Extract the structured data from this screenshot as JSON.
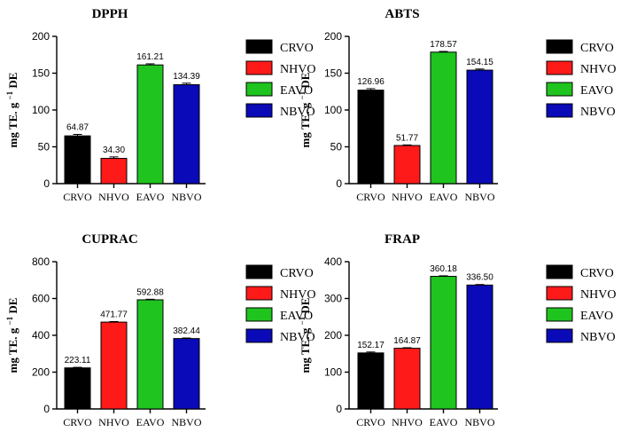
{
  "chart_data": [
    {
      "type": "bar",
      "title": "DPPH",
      "ylabel": "mg TE. g",
      "ylabel_sup": "−1",
      "ylabel_suffix": "DE",
      "categories": [
        "CRVO",
        "NHVO",
        "EAVO",
        "NBVO"
      ],
      "values": [
        64.87,
        34.3,
        161.21,
        134.39
      ],
      "errors": [
        2.0,
        2.0,
        1.5,
        2.0
      ],
      "data_labels": [
        "64.87",
        "34.30",
        "161.21",
        "134.39"
      ],
      "ylim": [
        0,
        200
      ],
      "yticks": [
        0,
        50,
        100,
        150,
        200
      ],
      "ytick_labels": [
        "0",
        "50",
        "100",
        "150",
        "200"
      ],
      "legend_position": "right",
      "grid": false
    },
    {
      "type": "bar",
      "title": "ABTS",
      "ylabel": "mg TE. g",
      "ylabel_sup": "−1",
      "ylabel_suffix": "DE",
      "categories": [
        "CRVO",
        "NHVO",
        "EAVO",
        "NBVO"
      ],
      "values": [
        126.96,
        51.77,
        178.57,
        154.15
      ],
      "errors": [
        2.0,
        0.8,
        1.0,
        1.5
      ],
      "data_labels": [
        "126.96",
        "51.77",
        "178.57",
        "154.15"
      ],
      "ylim": [
        0,
        200
      ],
      "yticks": [
        0,
        50,
        100,
        150,
        200
      ],
      "ytick_labels": [
        "0",
        "50",
        "100",
        "150",
        "200"
      ],
      "legend_position": "right",
      "grid": false
    },
    {
      "type": "bar",
      "title": "CUPRAC",
      "ylabel": "mg TE. g",
      "ylabel_sup": "−1",
      "ylabel_suffix": "DE",
      "categories": [
        "CRVO",
        "NHVO",
        "EAVO",
        "NBVO"
      ],
      "values": [
        223.11,
        471.77,
        592.88,
        382.44
      ],
      "errors": [
        3.0,
        3.0,
        3.0,
        3.0
      ],
      "data_labels": [
        "223.11",
        "471.77",
        "592.88",
        "382.44"
      ],
      "ylim": [
        0,
        800
      ],
      "yticks": [
        0,
        200,
        400,
        600,
        800
      ],
      "ytick_labels": [
        "0",
        "200",
        "400",
        "600",
        "800"
      ],
      "legend_position": "right",
      "grid": false
    },
    {
      "type": "bar",
      "title": "FRAP",
      "ylabel": "mg TE. g",
      "ylabel_sup": "−1",
      "ylabel_suffix": "DE",
      "categories": [
        "CRVO",
        "NHVO",
        "EAVO",
        "NBVO"
      ],
      "values": [
        152.17,
        164.87,
        360.18,
        336.5
      ],
      "errors": [
        2.5,
        1.5,
        1.5,
        1.5
      ],
      "data_labels": [
        "152.17",
        "164.87",
        "360.18",
        "336.50"
      ],
      "ylim": [
        0,
        400
      ],
      "yticks": [
        0,
        100,
        200,
        300,
        400
      ],
      "ytick_labels": [
        "0",
        "100",
        "200",
        "300",
        "400"
      ],
      "legend_position": "right",
      "grid": false
    }
  ],
  "legend": {
    "entries": [
      {
        "name": "CRVO",
        "color": "#000000"
      },
      {
        "name": "NHVO",
        "color": "#ff1a1a"
      },
      {
        "name": "EAVO",
        "color": "#1fc41f"
      },
      {
        "name": "NBVO",
        "color": "#0a0ab8"
      }
    ]
  },
  "colors": [
    "#000000",
    "#ff1a1a",
    "#1fc41f",
    "#0a0ab8"
  ]
}
